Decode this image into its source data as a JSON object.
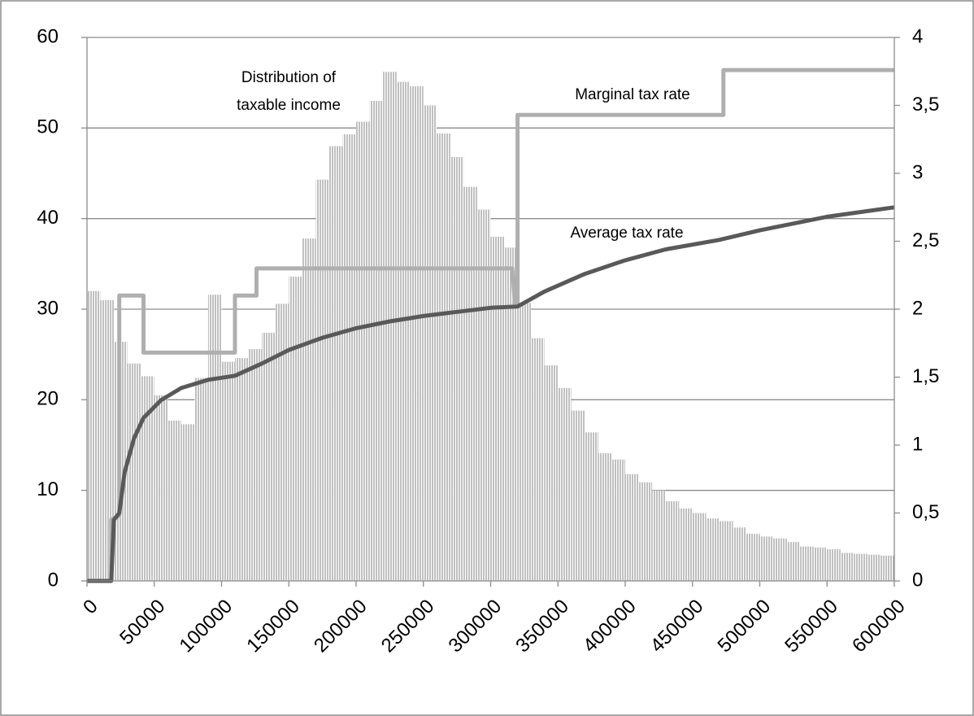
{
  "chart_data": {
    "type": "combo",
    "annotations": [
      "Distribution of",
      "taxable income",
      "Marginal tax rate",
      "Average tax rate"
    ],
    "xlim": [
      0,
      600000
    ],
    "xticks": [
      0,
      50000,
      100000,
      150000,
      200000,
      250000,
      300000,
      350000,
      400000,
      450000,
      500000,
      550000,
      600000
    ],
    "ylim": [
      0,
      60
    ],
    "yticks": [
      0,
      10,
      20,
      30,
      40,
      50,
      60
    ],
    "y2lim": [
      0,
      4
    ],
    "y2ticks": [
      0,
      {
        "value": 0.5,
        "label": "0,5"
      },
      1,
      {
        "value": 1.5,
        "label": "1,5"
      },
      2,
      {
        "value": 2.5,
        "label": "2,5"
      },
      3,
      {
        "value": 3.5,
        "label": "3,5"
      },
      4
    ],
    "grid": true,
    "series": [
      {
        "type": "histogram",
        "color": "#a6a6a6",
        "bins": [
          0,
          10000,
          20000,
          30000,
          40000,
          50000,
          60000,
          70000,
          80000,
          90000,
          100000,
          110000,
          120000,
          130000,
          140000,
          150000,
          160000,
          170000,
          180000,
          190000,
          200000,
          210000,
          220000,
          230000,
          240000,
          250000,
          260000,
          270000,
          280000,
          290000,
          300000,
          310000,
          320000,
          330000,
          340000,
          350000,
          360000,
          370000,
          380000,
          390000,
          400000,
          410000,
          420000,
          430000,
          440000,
          450000,
          460000,
          470000,
          480000,
          490000,
          500000,
          510000,
          520000,
          530000,
          540000,
          550000,
          560000,
          570000,
          580000,
          590000,
          600000
        ],
        "values": [
          32,
          31,
          26.4,
          24,
          22.6,
          20.5,
          17.7,
          17.3,
          22.4,
          31.6,
          24.2,
          24.6,
          25.6,
          27.4,
          30.6,
          33.6,
          37.8,
          44.3,
          48,
          49.3,
          50.7,
          53,
          56.2,
          55.1,
          54.6,
          52.5,
          49.4,
          46.8,
          43.5,
          41,
          38,
          36.8,
          30.7,
          26.8,
          23.8,
          21.3,
          18.8,
          16.4,
          14.1,
          13.4,
          11.8,
          10.9,
          10,
          8.8,
          8,
          7.5,
          6.9,
          6.6,
          5.9,
          5.2,
          4.9,
          4.7,
          4.3,
          3.8,
          3.7,
          3.5,
          3.1,
          3,
          2.9,
          2.8
        ]
      },
      {
        "type": "line",
        "axis": "y2",
        "color": "#afafaf",
        "x": [
          0,
          18000,
          18000,
          24000,
          24000,
          42000,
          42000,
          110000,
          110000,
          126000,
          126000,
          316000,
          318000,
          320000,
          320000,
          473000,
          473000,
          600000
        ],
        "values": [
          0,
          0,
          0.45,
          0.48,
          2.1,
          2.1,
          1.68,
          1.68,
          2.1,
          2.1,
          2.3,
          2.3,
          2.05,
          2.05,
          3.43,
          3.43,
          3.76,
          3.76
        ]
      },
      {
        "type": "line",
        "axis": "y2",
        "color": "#595959",
        "x": [
          0,
          18000,
          20000,
          24000,
          28000,
          35000,
          42000,
          55000,
          70000,
          90000,
          110000,
          130000,
          150000,
          175000,
          200000,
          225000,
          250000,
          275000,
          300000,
          320000,
          340000,
          370000,
          400000,
          430000,
          470000,
          500000,
          550000,
          600000
        ],
        "values": [
          0,
          0,
          0.45,
          0.5,
          0.8,
          1.05,
          1.2,
          1.33,
          1.42,
          1.48,
          1.51,
          1.6,
          1.7,
          1.79,
          1.86,
          1.91,
          1.95,
          1.98,
          2.01,
          2.02,
          2.13,
          2.26,
          2.36,
          2.44,
          2.51,
          2.58,
          2.68,
          2.75
        ]
      }
    ]
  }
}
